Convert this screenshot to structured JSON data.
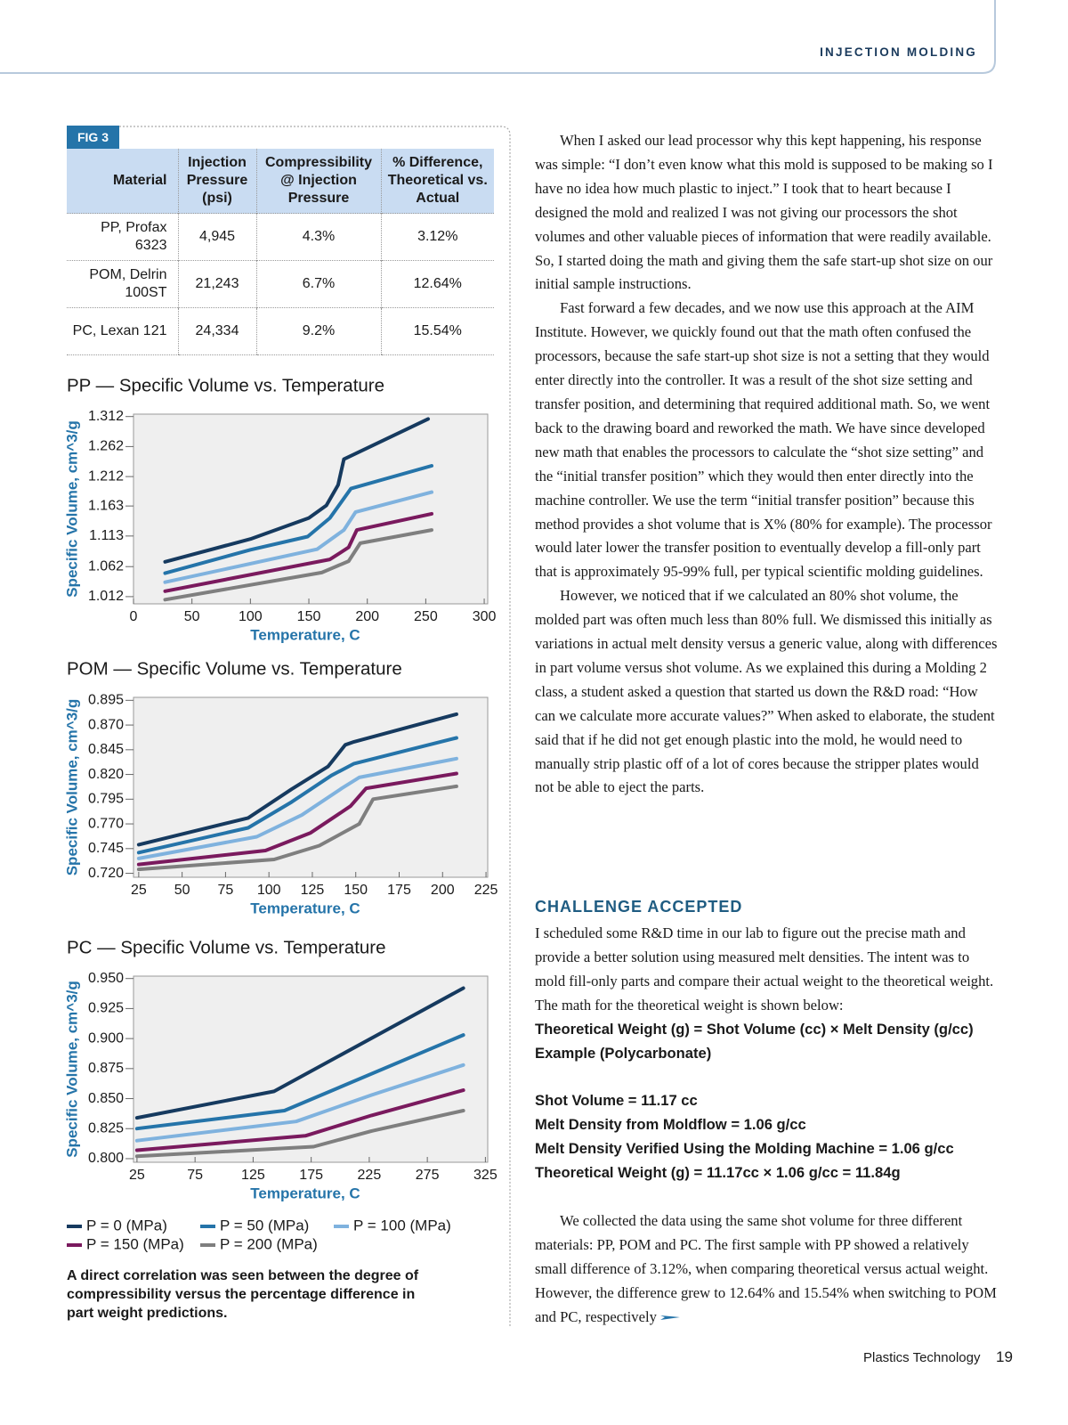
{
  "header": {
    "section": "INJECTION MOLDING"
  },
  "figure": {
    "label": "FIG 3",
    "table": {
      "header": [
        "Material",
        "Injection Pressure (psi)",
        "Compressibility @ Injection Pressure",
        "% Difference, Theoretical vs. Actual"
      ],
      "rows": [
        [
          "PP, Profax 6323",
          "4,945",
          "4.3%",
          "3.12%"
        ],
        [
          "POM, Delrin 100ST",
          "21,243",
          "6.7%",
          "12.64%"
        ],
        [
          "PC, Lexan 121",
          "24,334",
          "9.2%",
          "15.54%"
        ]
      ]
    },
    "caption": "A direct correlation was seen between the degree of compressibility versus the percentage difference in part weight predictions."
  },
  "chart_data": [
    {
      "type": "line",
      "title": "PP — Specific Volume vs. Temperature",
      "x_label": "Temperature, C",
      "y_label": "Specific Volume, cm^3/g",
      "xlim": [
        0,
        303
      ],
      "ylim": [
        1.0,
        1.316
      ],
      "xticks": [
        0,
        50,
        100,
        150,
        200,
        250,
        300
      ],
      "yticks": [
        1.012,
        1.062,
        1.113,
        1.163,
        1.212,
        1.262,
        1.312
      ],
      "series": [
        {
          "name": "P = 0 (MPa)",
          "color": "#163a5f",
          "x": [
            27,
            100,
            150,
            165,
            175,
            180,
            252
          ],
          "values": [
            1.07,
            1.108,
            1.143,
            1.164,
            1.198,
            1.241,
            1.308
          ]
        },
        {
          "name": "P = 50 (MPa)",
          "color": "#2574a9",
          "x": [
            27,
            100,
            149,
            168,
            186,
            255
          ],
          "values": [
            1.051,
            1.09,
            1.112,
            1.143,
            1.192,
            1.23
          ]
        },
        {
          "name": "P = 100 (MPa)",
          "color": "#7fb2de",
          "x": [
            27,
            157,
            180,
            190,
            255
          ],
          "values": [
            1.036,
            1.091,
            1.123,
            1.153,
            1.186
          ]
        },
        {
          "name": "P = 150 (MPa)",
          "color": "#7a1a5e",
          "x": [
            27,
            168,
            184,
            191,
            255
          ],
          "values": [
            1.021,
            1.074,
            1.094,
            1.123,
            1.15
          ]
        },
        {
          "name": "P = 200 (MPa)",
          "color": "#7f7f7f",
          "x": [
            27,
            161,
            184,
            194,
            255
          ],
          "values": [
            1.007,
            1.052,
            1.071,
            1.101,
            1.123
          ]
        }
      ]
    },
    {
      "type": "line",
      "title": "POM — Specific Volume vs. Temperature",
      "x_label": "Temperature, C",
      "y_label": "Specific Volume, cm^3/g",
      "xlim": [
        22,
        226
      ],
      "ylim": [
        0.716,
        0.898
      ],
      "xticks": [
        25,
        50,
        75,
        100,
        125,
        150,
        175,
        200,
        225
      ],
      "yticks": [
        {
          "value": 0.72,
          "label": "0.720"
        },
        0.745,
        {
          "value": 0.77,
          "label": "0.770"
        },
        0.795,
        {
          "value": 0.82,
          "label": "0.820"
        },
        0.845,
        {
          "value": 0.87,
          "label": "0.870"
        },
        0.895
      ],
      "series": [
        {
          "x": [
            25,
            88,
            113,
            134,
            144,
            149,
            208
          ],
          "values": [
            0.749,
            0.776,
            0.805,
            0.828,
            0.85,
            0.853,
            0.881
          ]
        },
        {
          "x": [
            25,
            88,
            113,
            136,
            149,
            208
          ],
          "values": [
            0.741,
            0.766,
            0.792,
            0.819,
            0.831,
            0.857
          ]
        },
        {
          "x": [
            25,
            93,
            119,
            142,
            152,
            208
          ],
          "values": [
            0.735,
            0.757,
            0.779,
            0.806,
            0.817,
            0.836
          ]
        },
        {
          "x": [
            25,
            98,
            124,
            147,
            156,
            208
          ],
          "values": [
            0.729,
            0.743,
            0.761,
            0.788,
            0.806,
            0.821
          ]
        },
        {
          "x": [
            25,
            103,
            129,
            152,
            160,
            208
          ],
          "values": [
            0.724,
            0.734,
            0.748,
            0.77,
            0.795,
            0.808
          ]
        }
      ]
    },
    {
      "type": "line",
      "title": "PC — Specific Volume vs. Temperature",
      "x_label": "Temperature, C",
      "y_label": "Specific Volume, cm^3/g",
      "xlim": [
        22,
        327
      ],
      "ylim": [
        0.797,
        0.952
      ],
      "xticks": [
        25,
        75,
        125,
        175,
        225,
        275,
        325
      ],
      "yticks": [
        {
          "value": 0.8,
          "label": "0.800"
        },
        0.825,
        {
          "value": 0.85,
          "label": "0.850"
        },
        0.875,
        {
          "value": 0.9,
          "label": "0.900"
        },
        0.925,
        {
          "value": 0.95,
          "label": "0.950"
        }
      ],
      "series": [
        {
          "x": [
            25,
            143,
            306
          ],
          "values": [
            0.834,
            0.856,
            0.942
          ]
        },
        {
          "x": [
            25,
            152,
            306
          ],
          "values": [
            0.825,
            0.84,
            0.903
          ]
        },
        {
          "x": [
            25,
            162,
            227,
            306
          ],
          "values": [
            0.815,
            0.831,
            0.853,
            0.878
          ]
        },
        {
          "x": [
            25,
            170,
            227,
            306
          ],
          "values": [
            0.807,
            0.819,
            0.836,
            0.857
          ]
        },
        {
          "x": [
            25,
            177,
            227,
            306
          ],
          "values": [
            0.802,
            0.81,
            0.823,
            0.84
          ]
        }
      ]
    }
  ],
  "article": {
    "paragraphs": [
      "When I asked our lead processor why this kept happening, his response was simple: “I don’t even know what this mold is supposed to be making so I have no idea how much plastic to inject.” I took that to heart because I designed the mold and realized I was not giving our processors the shot volumes and other valuable pieces of information that were readily available. So, I started doing the math and giving them the safe start-up shot size on our initial sample instructions.",
      "Fast forward a few decades, and we now use this approach at the AIM Institute. However, we quickly found out that the math often confused the processors, because the safe start-up shot size is not a setting that they would enter directly into the controller. It was a result of the shot size setting and transfer position, and determining that required additional math. So, we went back to the drawing board and reworked the math. We have since developed new math that enables the processors to calculate the “shot size setting” and the “initial transfer position” which they would then enter directly into the machine controller. We use the term “initial transfer position” because this method provides a shot volume that is X% (80% for example). The processor would later lower the transfer position to eventually develop a fill-only part that is approximately 95-99% full, per typical scientific molding guidelines.",
      "However, we noticed that if we calculated an 80% shot volume, the molded part was often much less than 80% full. We dismissed this initially as variations in actual melt density versus a generic value, along with differences in part volume versus shot volume. As we explained this during a Molding 2 class, a student asked a question that started us down the R&D road: “How can we calculate more accurate values?” When asked to elaborate, the student said that if he did not get enough plastic into the mold, he would need to manually strip plastic off of a lot of cores because the stripper plates would not be able to eject the parts."
    ],
    "heading": "CHALLENGE ACCEPTED",
    "body": "I scheduled some R&D time in our lab to figure out the precise math and provide a better solution using measured melt densities. The intent was to mold fill-only parts and compare their actual weight to the theoretical weight. The math for the theoretical weight is shown below:",
    "formula": "Theoretical Weight (g) = Shot Volume (cc) × Melt Density (g/cc)",
    "example": "Example (Polycarbonate)",
    "example_lines": [
      "Shot Volume = 11.17 cc",
      "Melt Density from Moldflow = 1.06 g/cc",
      "Melt Density Verified Using the Molding Machine = 1.06 g/cc",
      "Theoretical Weight (g) = 11.17cc × 1.06 g/cc = 11.84g"
    ],
    "closing": "We collected the data using the same shot volume for three different materials: PP, POM and PC. The first sample with PP showed a relatively small difference of 3.12%, when comparing theoretical versus actual weight. However, the difference grew to 12.64% and 15.54% when switching to POM and PC, respectively"
  },
  "footer": {
    "publication": "Plastics Technology",
    "page": "19"
  }
}
